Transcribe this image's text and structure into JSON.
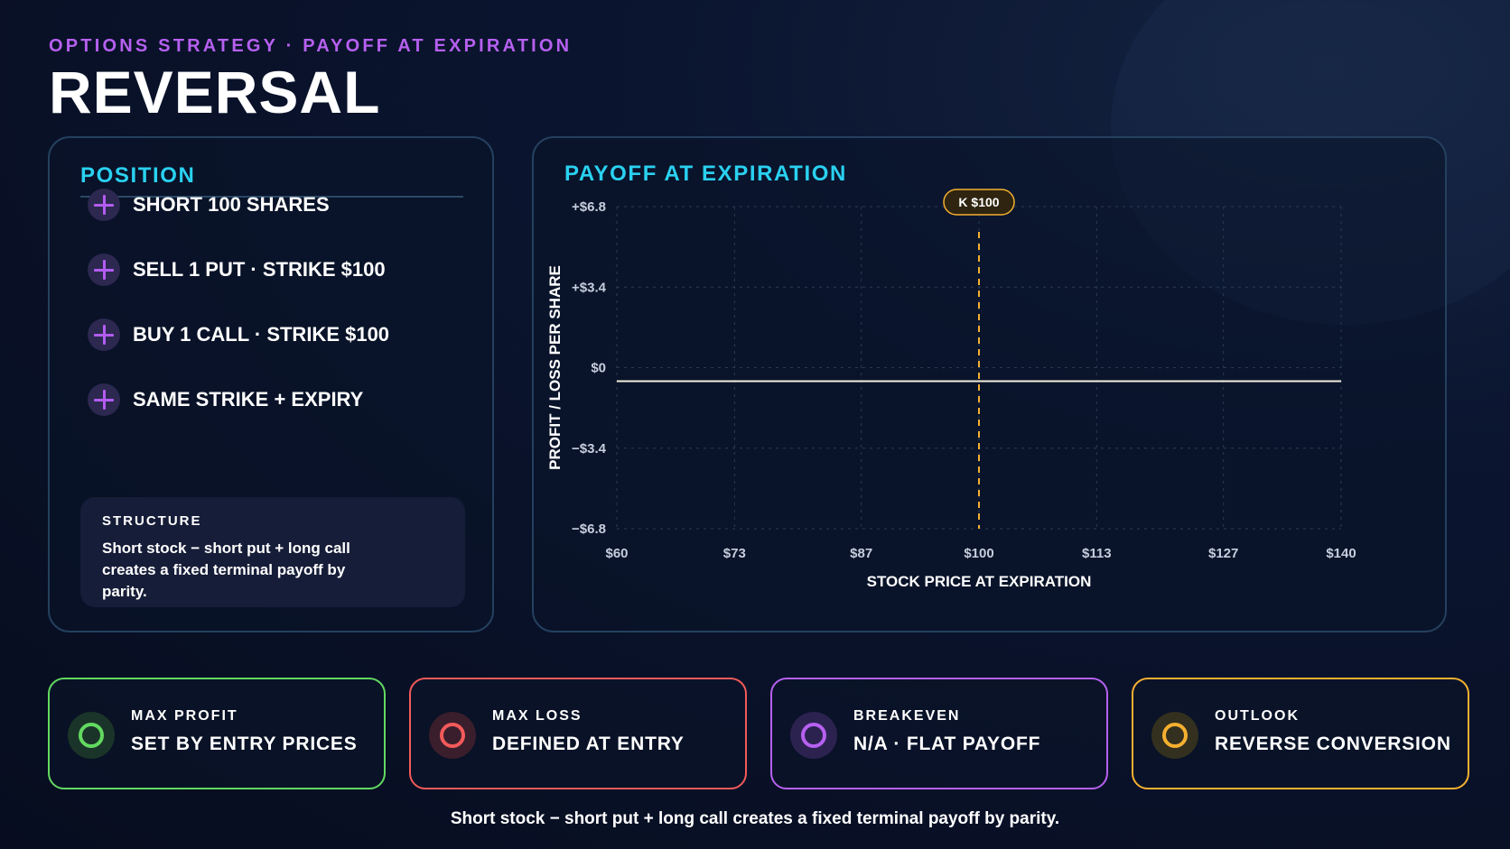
{
  "header": {
    "eyebrow": "OPTIONS STRATEGY · PAYOFF AT EXPIRATION",
    "title": "REVERSAL"
  },
  "position": {
    "heading": "POSITION",
    "items": [
      {
        "label": "SHORT 100 SHARES",
        "icon": "plus-icon"
      },
      {
        "label": "SELL 1 PUT · STRIKE $100",
        "icon": "plus-icon"
      },
      {
        "label": "BUY 1 CALL · STRIKE $100",
        "icon": "plus-icon"
      },
      {
        "label": "SAME STRIKE + EXPIRY",
        "icon": "plus-icon"
      }
    ],
    "structure": {
      "title": "STRUCTURE",
      "text": "Short stock − short put + long call creates a fixed terminal payoff by parity."
    }
  },
  "chart_panel": {
    "heading": "PAYOFF AT EXPIRATION"
  },
  "chart_data": {
    "type": "line",
    "xlabel": "STOCK PRICE AT EXPIRATION",
    "ylabel": "PROFIT / LOSS PER SHARE",
    "xlim": [
      60,
      140
    ],
    "ylim": [
      -6.8,
      6.8
    ],
    "x_ticks": [
      60,
      73,
      87,
      100,
      113,
      127,
      140
    ],
    "x_tick_labels": [
      "$60",
      "$73",
      "$87",
      "$100",
      "$113",
      "$127",
      "$140"
    ],
    "y_ticks": [
      6.8,
      3.4,
      0,
      -3.4,
      -6.8
    ],
    "y_tick_labels": [
      "+$6.8",
      "+$3.4",
      "$0",
      "−$3.4",
      "−$6.8"
    ],
    "grid": true,
    "series": [
      {
        "x": [
          60,
          140
        ],
        "y": [
          0,
          0
        ],
        "color": "#f5f0dc"
      }
    ],
    "annotations": [
      {
        "type": "vline",
        "x": 100,
        "label": "K $100",
        "color": "#f5b030"
      }
    ]
  },
  "cards": [
    {
      "label": "MAX PROFIT",
      "value": "SET BY ENTRY PRICES",
      "color": "#62d960",
      "icon": "circle-icon"
    },
    {
      "label": "MAX LOSS",
      "value": "DEFINED AT ENTRY",
      "color": "#f35a5a",
      "icon": "circle-icon"
    },
    {
      "label": "BREAKEVEN",
      "value": "N/A · FLAT PAYOFF",
      "color": "#b660f0",
      "icon": "circle-icon"
    },
    {
      "label": "OUTLOOK",
      "value": "REVERSE CONVERSION",
      "color": "#f5b030",
      "icon": "circle-icon"
    }
  ],
  "footer": {
    "note": "Short stock − short put + long call creates a fixed terminal payoff by parity."
  }
}
